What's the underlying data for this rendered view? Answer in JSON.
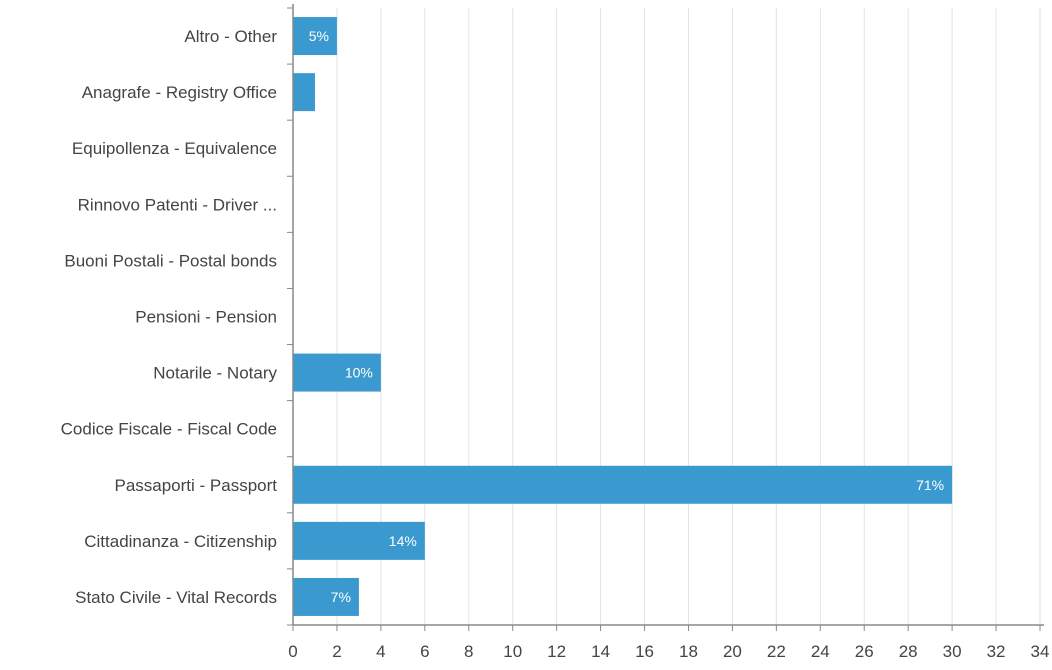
{
  "chart_data": {
    "type": "bar",
    "orientation": "horizontal",
    "categories": [
      "Altro - Other",
      "Anagrafe - Registry Office",
      "Equipollenza - Equivalence",
      "Rinnovo Patenti - Driver ...",
      "Buoni Postali - Postal bonds",
      "Pensioni - Pension",
      "Notarile - Notary",
      "Codice Fiscale - Fiscal Code",
      "Passaporti - Passport",
      "Cittadinanza - Citizenship",
      "Stato Civile - Vital Records"
    ],
    "values": [
      2,
      1,
      0,
      0,
      0,
      0,
      4,
      0,
      30,
      6,
      3
    ],
    "data_labels": [
      "5%",
      "",
      "",
      "",
      "",
      "",
      "10%",
      "",
      "71%",
      "14%",
      "7%"
    ],
    "xlim": [
      0,
      34
    ],
    "xticks": [
      0,
      2,
      4,
      6,
      8,
      10,
      12,
      14,
      16,
      18,
      20,
      22,
      24,
      26,
      28,
      30,
      32,
      34
    ],
    "grid": true,
    "bar_color": "#3a9ad0",
    "title": "",
    "xlabel": "",
    "ylabel": ""
  }
}
